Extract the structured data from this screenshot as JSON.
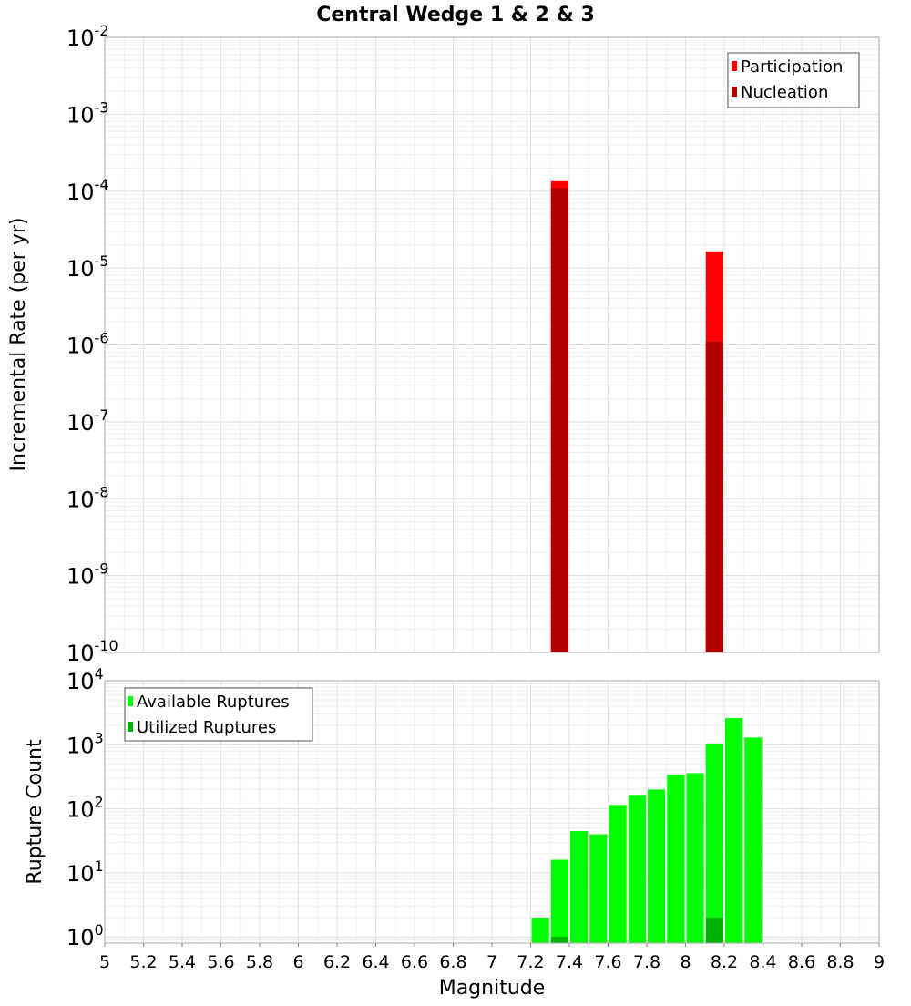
{
  "title": "Central Wedge 1 & 2 & 3",
  "chart_data": [
    {
      "type": "bar",
      "panel": "top",
      "title": "Central Wedge 1 & 2 & 3",
      "xlabel": "",
      "ylabel": "Incremental Rate (per yr)",
      "xlim": [
        5,
        9
      ],
      "yscale": "log",
      "ylim": [
        1e-10,
        0.01
      ],
      "y_tick_exponents": [
        -2,
        -3,
        -4,
        -5,
        -6,
        -7,
        -8,
        -9,
        -10
      ],
      "bin_width": 0.1,
      "legend": {
        "placement": "top-right",
        "entries": [
          "Participation",
          "Nucleation"
        ]
      },
      "series": [
        {
          "name": "Participation",
          "color": "#ff0000",
          "points": [
            {
              "x": 7.35,
              "y": 0.000135
            },
            {
              "x": 8.15,
              "y": 1.65e-05
            }
          ]
        },
        {
          "name": "Nucleation",
          "color": "#b20000",
          "points": [
            {
              "x": 7.35,
              "y": 0.00011
            },
            {
              "x": 8.15,
              "y": 1.1e-06
            }
          ]
        }
      ]
    },
    {
      "type": "bar",
      "panel": "bottom",
      "xlabel": "Magnitude",
      "ylabel": "Rupture Count",
      "xlim": [
        5,
        9
      ],
      "yscale": "log",
      "ylim": [
        0.8,
        10000
      ],
      "y_tick_exponents": [
        4,
        3,
        2,
        1,
        0
      ],
      "x_ticks": [
        "5",
        "5.2",
        "5.4",
        "5.6",
        "5.8",
        "6",
        "6.2",
        "6.4",
        "6.6",
        "6.8",
        "7",
        "7.2",
        "7.4",
        "7.6",
        "7.8",
        "8",
        "8.2",
        "8.4",
        "8.6",
        "8.8",
        "9"
      ],
      "bin_width": 0.1,
      "legend": {
        "placement": "top-left",
        "entries": [
          "Available Ruptures",
          "Utilized Ruptures"
        ]
      },
      "series": [
        {
          "name": "Available Ruptures",
          "color": "#00ff00",
          "points": [
            {
              "x": 7.25,
              "y": 2
            },
            {
              "x": 7.35,
              "y": 16
            },
            {
              "x": 7.45,
              "y": 45
            },
            {
              "x": 7.55,
              "y": 40
            },
            {
              "x": 7.65,
              "y": 115
            },
            {
              "x": 7.75,
              "y": 165
            },
            {
              "x": 7.85,
              "y": 200
            },
            {
              "x": 7.95,
              "y": 340
            },
            {
              "x": 8.05,
              "y": 360
            },
            {
              "x": 8.15,
              "y": 1050
            },
            {
              "x": 8.25,
              "y": 2600
            },
            {
              "x": 8.35,
              "y": 1300
            }
          ]
        },
        {
          "name": "Utilized Ruptures",
          "color": "#00b200",
          "points": [
            {
              "x": 7.35,
              "y": 1
            },
            {
              "x": 8.15,
              "y": 2
            }
          ]
        }
      ]
    }
  ]
}
